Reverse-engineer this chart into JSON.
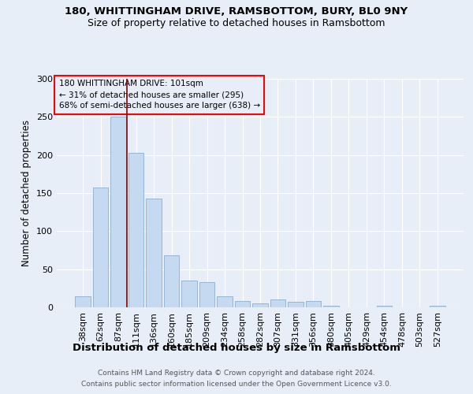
{
  "title": "180, WHITTINGHAM DRIVE, RAMSBOTTOM, BURY, BL0 9NY",
  "subtitle": "Size of property relative to detached houses in Ramsbottom",
  "xlabel": "Distribution of detached houses by size in Ramsbottom",
  "ylabel": "Number of detached properties",
  "footnote1": "Contains HM Land Registry data © Crown copyright and database right 2024.",
  "footnote2": "Contains public sector information licensed under the Open Government Licence v3.0.",
  "annotation_line1": "180 WHITTINGHAM DRIVE: 101sqm",
  "annotation_line2": "← 31% of detached houses are smaller (295)",
  "annotation_line3": "68% of semi-detached houses are larger (638) →",
  "categories": [
    "38sqm",
    "62sqm",
    "87sqm",
    "111sqm",
    "136sqm",
    "160sqm",
    "185sqm",
    "209sqm",
    "234sqm",
    "258sqm",
    "282sqm",
    "307sqm",
    "331sqm",
    "356sqm",
    "380sqm",
    "405sqm",
    "429sqm",
    "454sqm",
    "478sqm",
    "503sqm",
    "527sqm"
  ],
  "values": [
    15,
    157,
    250,
    203,
    143,
    68,
    35,
    33,
    15,
    8,
    5,
    10,
    7,
    8,
    2,
    0,
    0,
    2,
    0,
    0,
    2
  ],
  "bar_color": "#c5d9f0",
  "bar_edge_color": "#8aafcf",
  "vline_color": "#8b0000",
  "vline_position": 2.5,
  "background_color": "#e8eef8",
  "grid_color": "#ffffff",
  "ylim": [
    0,
    300
  ],
  "yticks": [
    0,
    50,
    100,
    150,
    200,
    250,
    300
  ],
  "title_fontsize": 9.5,
  "subtitle_fontsize": 9,
  "xlabel_fontsize": 9.5,
  "ylabel_fontsize": 8.5,
  "tick_fontsize": 8,
  "annotation_fontsize": 7.5,
  "footnote_fontsize": 6.5
}
